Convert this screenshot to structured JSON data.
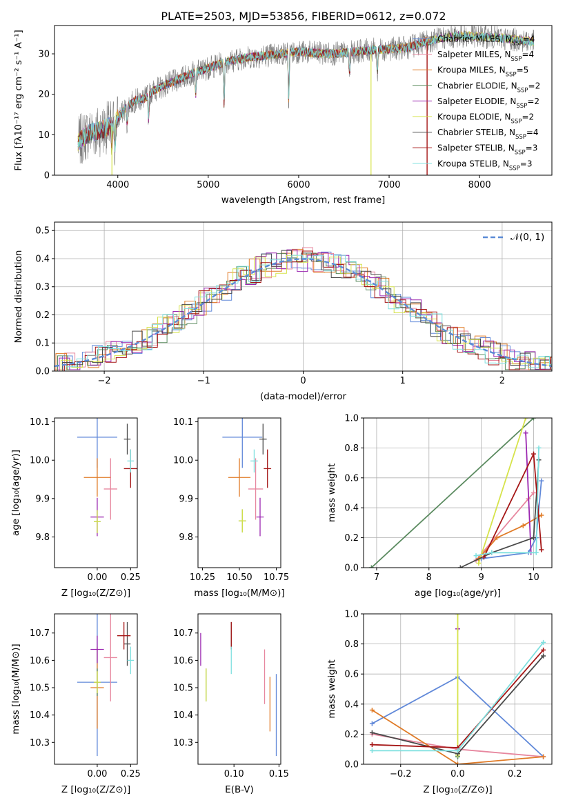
{
  "title": "PLATE=2503, MJD=53856, FIBERID=0612, z=0.072",
  "colors": [
    "#6189d9",
    "#e7879f",
    "#e07b27",
    "#5a8a5f",
    "#9b27b0",
    "#d6e34a",
    "#4a4a4a",
    "#a51616",
    "#7fe0df"
  ],
  "models": [
    {
      "name": "Chabrier MILES",
      "n": "4"
    },
    {
      "name": "Salpeter MILES",
      "n": "4"
    },
    {
      "name": "Kroupa MILES",
      "n": "5"
    },
    {
      "name": "Chabrier ELODIE",
      "n": "2"
    },
    {
      "name": "Salpeter ELODIE",
      "n": "2"
    },
    {
      "name": "Kroupa ELODIE",
      "n": "2"
    },
    {
      "name": "Chabrier STELIB",
      "n": "4"
    },
    {
      "name": "Salpeter STELIB",
      "n": "3"
    },
    {
      "name": "Kroupa STELIB",
      "n": "3"
    }
  ],
  "nssp_label": "N",
  "nssp_sub": "SSP",
  "chart_data": [
    {
      "id": "spectrum",
      "type": "line",
      "xlabel": "wavelength [Angstrom, rest frame]",
      "ylabel": "Flux [fλ10⁻¹⁷ erg cm⁻² s⁻¹ A⁻¹]",
      "xlim": [
        3300,
        8800
      ],
      "ylim": [
        0,
        37
      ],
      "xticks": [
        "4000",
        "5000",
        "6000",
        "7000",
        "8000"
      ],
      "yticks": [
        "0",
        "10",
        "20",
        "30"
      ],
      "grid": false,
      "legend": "right",
      "continuum": {
        "x": [
          3560,
          3650,
          3700,
          3800,
          3900,
          4000,
          4100,
          4200,
          4300,
          4400,
          4500,
          4600,
          4800,
          5000,
          5200,
          5400,
          5600,
          5800,
          6000,
          6200,
          6400,
          6600,
          6800,
          7000,
          7200,
          7400,
          7600,
          7800,
          8000,
          8200,
          8400,
          8600
        ],
        "y": [
          8,
          10,
          10.5,
          11,
          12,
          14,
          17,
          18.5,
          19,
          21,
          22,
          23,
          25,
          26.5,
          28,
          29,
          29.5,
          30,
          30.5,
          30.2,
          30,
          30.5,
          31,
          31.2,
          31.5,
          33,
          34,
          34.5,
          34.3,
          34,
          33.5,
          33
        ]
      },
      "fit_ranges": [
        [
          3560,
          7420
        ],
        [
          3560,
          8600
        ],
        [
          3560,
          8600
        ],
        [
          3560,
          8600
        ],
        [
          3560,
          8600
        ],
        [
          3560,
          8600
        ],
        [
          3560,
          8600
        ],
        [
          3560,
          7420
        ],
        [
          3560,
          8600
        ]
      ]
    },
    {
      "id": "residual-histogram",
      "type": "histogram",
      "xlabel": "(data-model)/error",
      "ylabel": "Normed distribution",
      "xlim": [
        -2.5,
        2.5
      ],
      "ylim": [
        0,
        0.53
      ],
      "xticks": [
        "−2",
        "−1",
        "0",
        "1",
        "2"
      ],
      "yticks": [
        "0.0",
        "0.1",
        "0.2",
        "0.3",
        "0.4",
        "0.5"
      ],
      "grid": true,
      "legend": "top-right",
      "legend_label": "𝒩(0, 1)"
    },
    {
      "id": "age-vs-z",
      "type": "scatter",
      "xlabel": "Z [log₁₀(Z/Z⊙)]",
      "ylabel": "age  [log₁₀(age/yr)]",
      "xlim": [
        -0.32,
        0.3
      ],
      "ylim": [
        9.72,
        10.11
      ],
      "xticks": [
        "0.00",
        "0.25"
      ],
      "yticks": [
        "9.8",
        "9.9",
        "10.0",
        "10.1"
      ],
      "points": [
        [
          0,
          10.06,
          0.3,
          0.08
        ],
        [
          0.1,
          9.925,
          0.1,
          0.08
        ],
        [
          0,
          9.955,
          0.2,
          0.05
        ],
        [
          0,
          9.84,
          0.05,
          0.03
        ],
        [
          0,
          9.852,
          0.1,
          0.05
        ],
        [
          0,
          9.84,
          0.05,
          0.03
        ],
        [
          0.225,
          10.055,
          0.05,
          0.04
        ],
        [
          0.25,
          9.978,
          0.1,
          0.05
        ],
        [
          0.25,
          9.998,
          0.05,
          0.03
        ]
      ]
    },
    {
      "id": "age-vs-mass",
      "type": "scatter",
      "xlabel": "mass [log₁₀(M/M⊙)]",
      "ylabel": "",
      "xlim": [
        10.22,
        10.78
      ],
      "ylim": [
        9.72,
        10.11
      ],
      "xticks": [
        "10.25",
        "10.50",
        "10.75"
      ],
      "yticks": [
        "9.8",
        "9.9",
        "10.0",
        "10.1"
      ],
      "points": [
        [
          10.52,
          10.06,
          0.27,
          0.08
        ],
        [
          10.61,
          9.925,
          0.1,
          0.08
        ],
        [
          10.5,
          9.955,
          0.15,
          0.05
        ],
        [
          10.52,
          9.842,
          0.05,
          0.03
        ],
        [
          10.64,
          9.852,
          0.05,
          0.05
        ],
        [
          10.52,
          9.842,
          0.05,
          0.03
        ],
        [
          10.66,
          10.055,
          0.05,
          0.04
        ],
        [
          10.69,
          9.978,
          0.05,
          0.05
        ],
        [
          10.6,
          9.998,
          0.05,
          0.03
        ]
      ]
    },
    {
      "id": "sfh-age",
      "type": "line",
      "xlabel": "age  [log₁₀(age/yr)]",
      "ylabel": "mass weight",
      "xlim": [
        6.75,
        10.35
      ],
      "ylim": [
        0,
        1
      ],
      "xticks": [
        "7",
        "8",
        "9",
        "10"
      ],
      "yticks": [
        "0.0",
        "0.2",
        "0.4",
        "0.6",
        "0.8",
        "1.0"
      ],
      "grid": true,
      "series": [
        [
          [
            10.15,
            0.58
          ],
          [
            10.05,
            0.2
          ],
          [
            9.9,
            0.1
          ],
          [
            9,
            0.06
          ]
        ],
        [
          [
            10,
            0.5
          ],
          [
            9.9,
            0.46
          ],
          [
            8.9,
            0.05
          ]
        ],
        [
          [
            10.15,
            0.35
          ],
          [
            9.8,
            0.28
          ],
          [
            9.3,
            0.2
          ],
          [
            8.95,
            0.06
          ]
        ],
        [
          [
            10,
            1
          ],
          [
            6.9,
            0
          ]
        ],
        [
          [
            9.85,
            0.9
          ],
          [
            9.95,
            0.1
          ]
        ],
        [
          [
            9.85,
            1
          ],
          [
            8.95,
            0.03
          ]
        ],
        [
          [
            10.1,
            0.72
          ],
          [
            10,
            0.2
          ],
          [
            9.2,
            0.1
          ],
          [
            8.6,
            0
          ]
        ],
        [
          [
            10.15,
            0.12
          ],
          [
            10,
            0.76
          ],
          [
            9.05,
            0.07
          ]
        ],
        [
          [
            10.1,
            0.8
          ],
          [
            10.05,
            0.1
          ],
          [
            9.2,
            0.1
          ],
          [
            8.9,
            0.08
          ]
        ]
      ]
    },
    {
      "id": "mass-vs-z",
      "type": "scatter",
      "xlabel": "Z [log₁₀(Z/Z⊙)]",
      "ylabel": "mass [log₁₀(M/M⊙)]",
      "xlim": [
        -0.32,
        0.3
      ],
      "ylim": [
        10.22,
        10.77
      ],
      "xticks": [
        "0.00",
        "0.25"
      ],
      "yticks": [
        "10.3",
        "10.4",
        "10.5",
        "10.6",
        "10.7"
      ],
      "points": [
        [
          0,
          10.52,
          0.3,
          0.27
        ],
        [
          0.1,
          10.61,
          0.1,
          0.16
        ],
        [
          0,
          10.5,
          0.1,
          0.15
        ],
        [
          0,
          10.52,
          0.05,
          0.05
        ],
        [
          0,
          10.64,
          0.1,
          0.05
        ],
        [
          0,
          10.52,
          0.05,
          0.04
        ],
        [
          0.225,
          10.66,
          0.05,
          0.08
        ],
        [
          0.2,
          10.69,
          0.1,
          0.05
        ],
        [
          0.25,
          10.6,
          0.05,
          0.05
        ]
      ]
    },
    {
      "id": "mass-vs-ebv",
      "type": "scatter",
      "xlabel": "E(B-V)",
      "ylabel": "",
      "xlim": [
        0.06,
        0.152
      ],
      "ylim": [
        10.22,
        10.77
      ],
      "xticks": [
        "0.10",
        "0.15"
      ],
      "yticks": [
        "10.3",
        "10.4",
        "10.5",
        "10.6",
        "10.7"
      ],
      "points": [
        [
          0.147,
          10.4,
          0,
          0.15
        ],
        [
          0.134,
          10.54,
          0,
          0.1
        ],
        [
          0.14,
          10.44,
          0,
          0.1
        ],
        [
          0.069,
          10.51,
          0,
          0.06
        ],
        [
          0.063,
          10.64,
          0,
          0.06
        ],
        [
          0.069,
          10.51,
          0,
          0.06
        ],
        [
          0.097,
          10.69,
          0,
          0.05
        ],
        [
          0.097,
          10.69,
          0,
          0.05
        ],
        [
          0.097,
          10.6,
          0,
          0.05
        ]
      ]
    },
    {
      "id": "sfh-z",
      "type": "line",
      "xlabel": "Z [log₁₀(Z/Z⊙)]",
      "ylabel": "mass weight",
      "xlim": [
        -0.33,
        0.33
      ],
      "ylim": [
        0,
        1
      ],
      "xticks": [
        "−0.2",
        "0.0",
        "0.2"
      ],
      "yticks": [
        "0.0",
        "0.2",
        "0.4",
        "0.6",
        "0.8",
        "1.0"
      ],
      "grid": true,
      "series": [
        [
          [
            -0.3,
            0.27
          ],
          [
            0,
            0.58
          ],
          [
            0.3,
            0.05
          ]
        ],
        [
          [
            -0.3,
            0.2
          ],
          [
            0,
            0.1
          ],
          [
            0.3,
            0.05
          ]
        ],
        [
          [
            -0.3,
            0.36
          ],
          [
            0,
            0
          ],
          [
            0.3,
            0.05
          ]
        ],
        [
          [
            0,
            0.05
          ],
          [
            0,
            0.05
          ]
        ],
        [
          [
            0,
            0.9
          ],
          [
            0,
            0.9
          ]
        ],
        [
          [
            0,
            1
          ],
          [
            0,
            0.06
          ]
        ],
        [
          [
            -0.3,
            0.21
          ],
          [
            0,
            0.07
          ],
          [
            0.3,
            0.72
          ]
        ],
        [
          [
            -0.3,
            0.13
          ],
          [
            0,
            0.11
          ],
          [
            0.3,
            0.76
          ]
        ],
        [
          [
            -0.3,
            0.09
          ],
          [
            0,
            0.09
          ],
          [
            0.3,
            0.81
          ]
        ]
      ]
    }
  ]
}
